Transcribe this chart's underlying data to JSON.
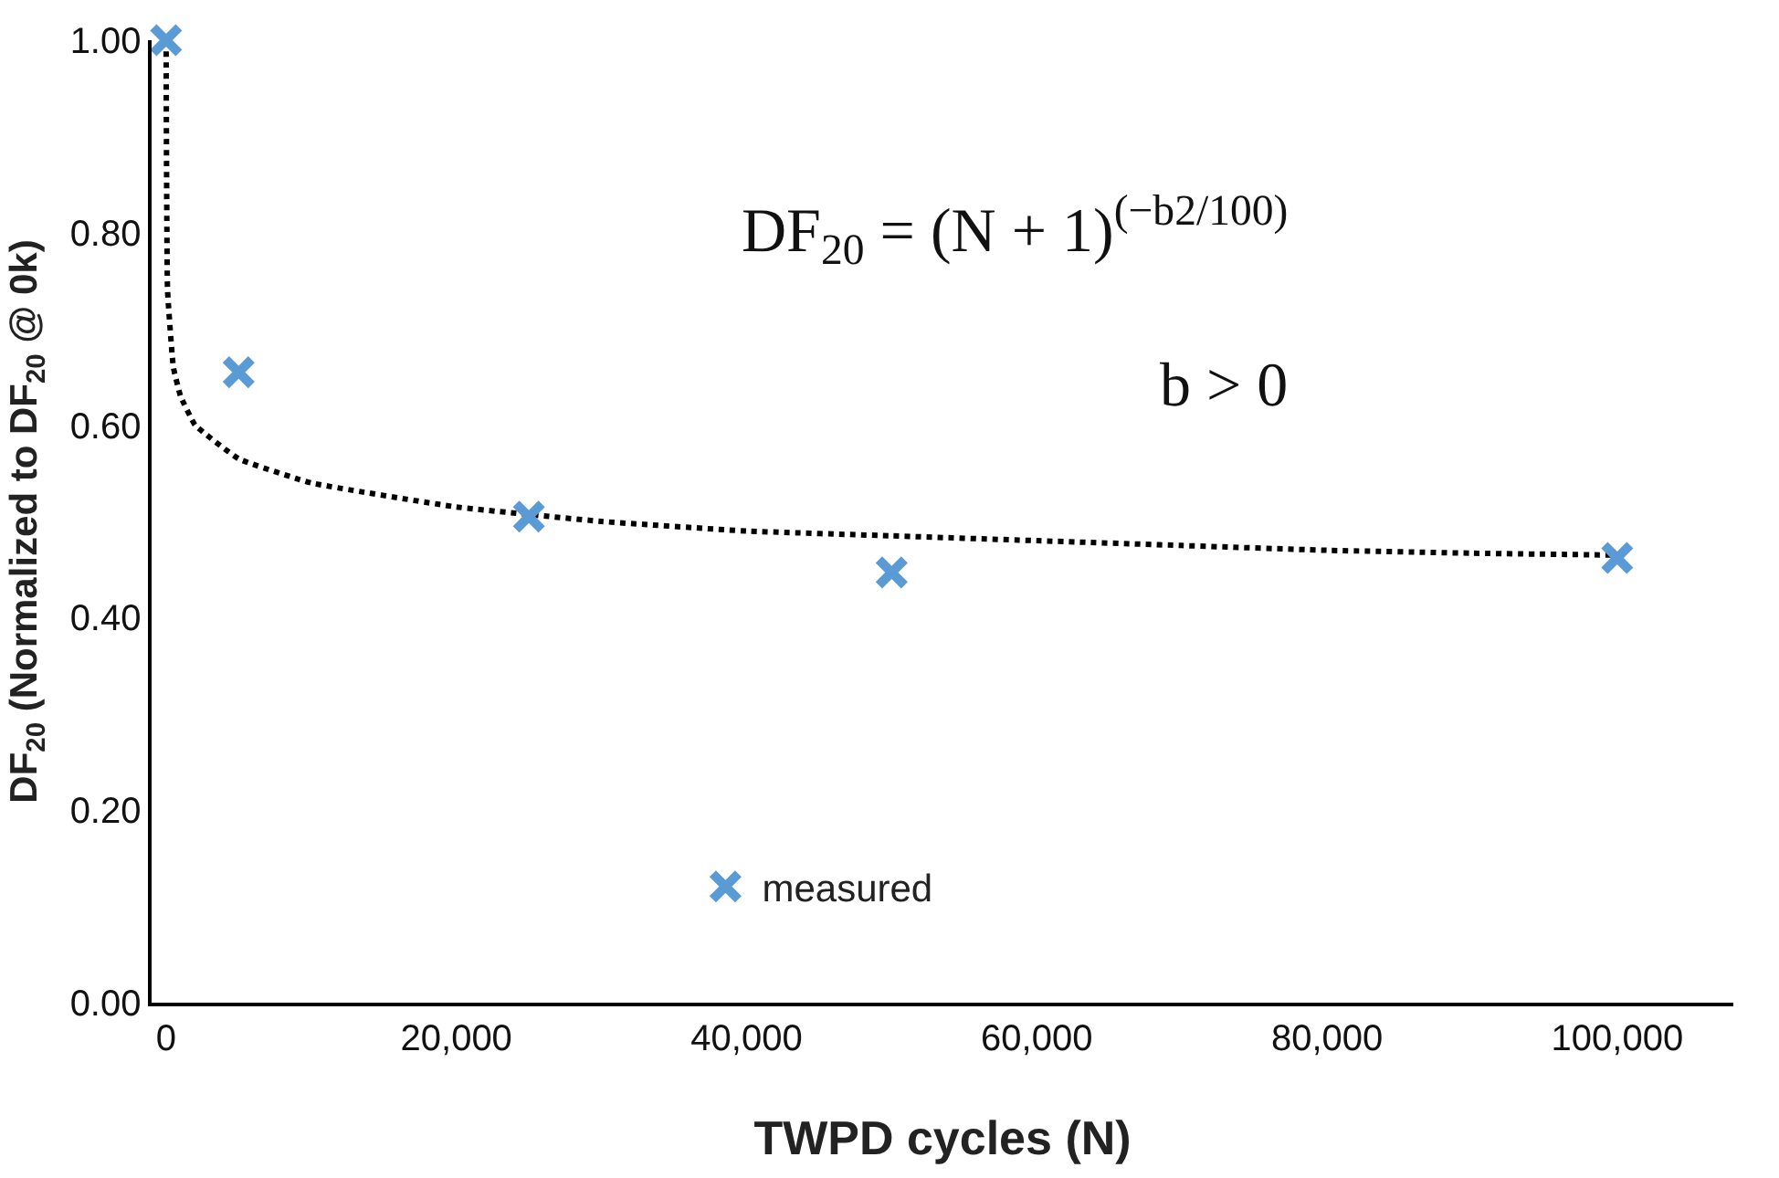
{
  "chart_data": {
    "type": "scatter",
    "xlabel": "TWPD cycles (N)",
    "ylabel": "DF$_{20}$ (Normalized to DF$_{20}$ @ 0k)",
    "xlim": [
      -1000,
      108000
    ],
    "xticks": [
      {
        "value": 0,
        "label": "0"
      },
      {
        "value": 20000,
        "label": "20,000"
      },
      {
        "value": 40000,
        "label": "40,000"
      },
      {
        "value": 60000,
        "label": "60,000"
      },
      {
        "value": 80000,
        "label": "80,000"
      },
      {
        "value": 100000,
        "label": "100,000"
      }
    ],
    "ylim": [
      0,
      1
    ],
    "yticks": [
      {
        "value": 0,
        "label": "0.00"
      },
      {
        "value": 0.2,
        "label": "0.20"
      },
      {
        "value": 0.4,
        "label": "0.40"
      },
      {
        "value": 0.6,
        "label": "0.60"
      },
      {
        "value": 0.8,
        "label": "0.80"
      },
      {
        "value": 1,
        "label": "1.00"
      }
    ],
    "legend": "bottom",
    "series": [
      {
        "type": "line",
        "color": "#000000",
        "line_style": "dotted",
        "marker": "none",
        "x": [
          0,
          100,
          500,
          1000,
          2000,
          5000,
          10000,
          20000,
          30000,
          40000,
          50000,
          60000,
          70000,
          80000,
          90000,
          100000
        ],
        "values": [
          1.0,
          0.74,
          0.66,
          0.63,
          0.6,
          0.565,
          0.54,
          0.515,
          0.5,
          0.49,
          0.485,
          0.48,
          0.475,
          0.47,
          0.467,
          0.465
        ]
      },
      {
        "name": "measured",
        "color": "#5b9bd5",
        "marker": "cross",
        "x": [
          0,
          5000,
          25000,
          50000,
          100000
        ],
        "values": [
          1.0,
          0.655,
          0.505,
          0.447,
          0.462
        ]
      }
    ],
    "annotations": [
      "DF$_{20}$ = (N + 1)$^{(−b2/100)}$",
      "b > 0"
    ]
  }
}
